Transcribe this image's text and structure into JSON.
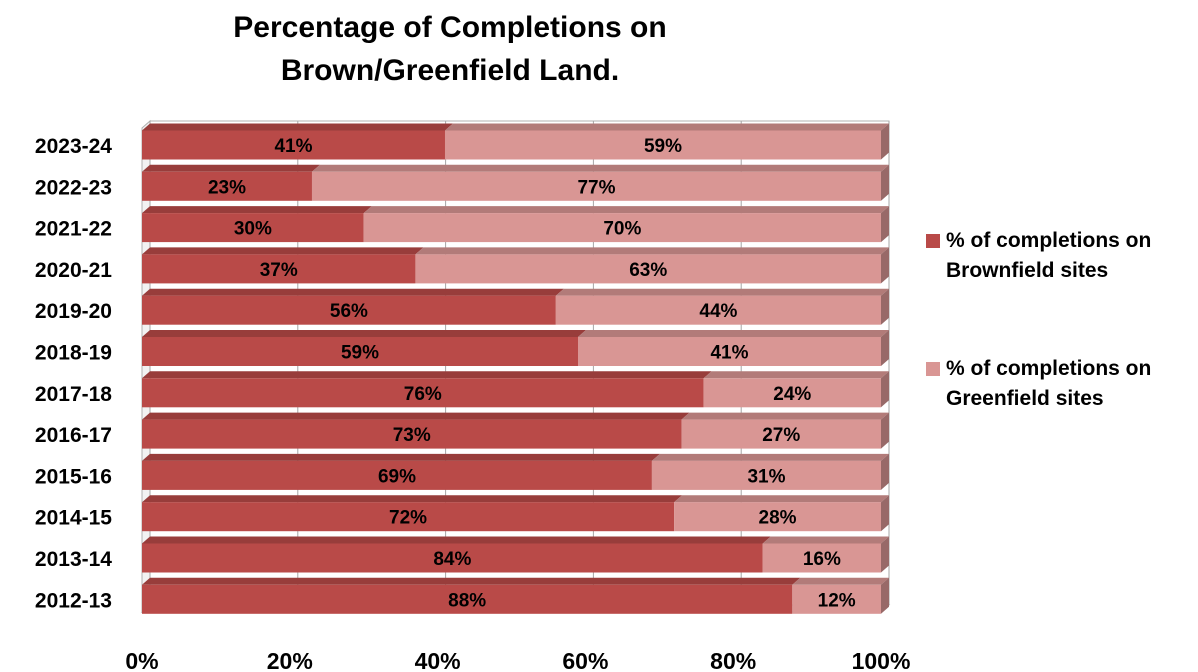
{
  "chart_data": {
    "type": "bar",
    "orientation": "horizontal",
    "stacked": true,
    "percent_stacked": true,
    "three_d": true,
    "title_lines": [
      "Percentage of Completions on",
      "Brown/Greenfield Land."
    ],
    "categories": [
      "2023-24",
      "2022-23",
      "2021-22",
      "2020-21",
      "2019-20",
      "2018-19",
      "2017-18",
      "2016-17",
      "2015-16",
      "2014-15",
      "2013-14",
      "2012-13"
    ],
    "series": [
      {
        "name_lines": [
          "% of completions on",
          "Brownfield sites"
        ],
        "color": "#b94a48",
        "values": [
          41,
          23,
          30,
          37,
          56,
          59,
          76,
          73,
          69,
          72,
          84,
          88
        ],
        "labels": [
          "41%",
          "23%",
          "30%",
          "37%",
          "56%",
          "59%",
          "76%",
          "73%",
          "69%",
          "72%",
          "84%",
          "88%"
        ]
      },
      {
        "name_lines": [
          "% of completions on",
          "Greenfield sites"
        ],
        "color": "#d99694",
        "values": [
          59,
          77,
          70,
          63,
          44,
          41,
          24,
          27,
          31,
          28,
          16,
          12
        ],
        "labels": [
          "59%",
          "77%",
          "70%",
          "63%",
          "44%",
          "41%",
          "24%",
          "27%",
          "31%",
          "28%",
          "16%",
          "12%"
        ]
      }
    ],
    "x_ticks": [
      "0%",
      "20%",
      "40%",
      "60%",
      "80%",
      "100%"
    ],
    "xlim": [
      0,
      100
    ],
    "grid": true,
    "legend_position": "right"
  }
}
